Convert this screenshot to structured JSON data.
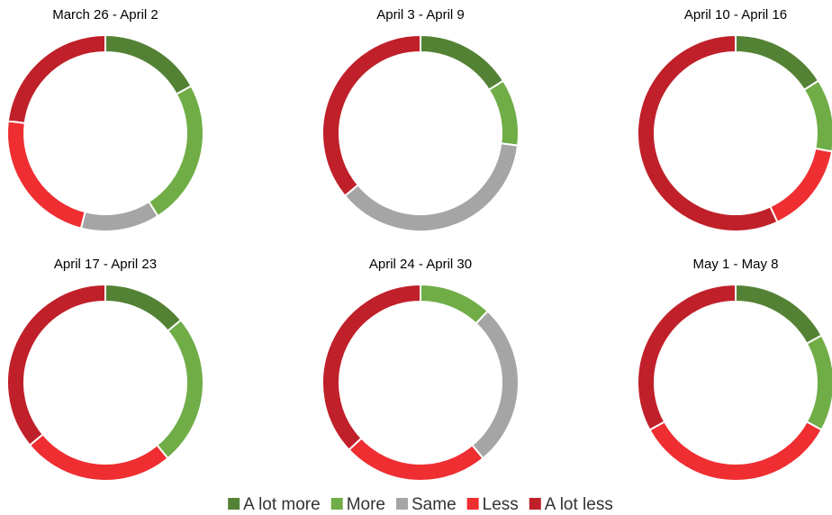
{
  "chart_data": [
    {
      "type": "donut",
      "title": "March 26 - April 2",
      "categories": [
        "A lot more",
        "More",
        "Same",
        "Less",
        "A lot less"
      ],
      "values": [
        17,
        24,
        13,
        23,
        23
      ],
      "colors": [
        "#548235",
        "#70ad47",
        "#a5a5a5",
        "#ee2e31",
        "#c0202a"
      ]
    },
    {
      "type": "donut",
      "title": "April 3 - April 9",
      "categories": [
        "A lot more",
        "More",
        "Same",
        "Less",
        "A lot less"
      ],
      "values": [
        16,
        11,
        37,
        0,
        36
      ],
      "colors": [
        "#548235",
        "#70ad47",
        "#a5a5a5",
        "#ee2e31",
        "#c0202a"
      ]
    },
    {
      "type": "donut",
      "title": "April 10 - April 16",
      "categories": [
        "A lot more",
        "More",
        "Same",
        "Less",
        "A lot less"
      ],
      "values": [
        16,
        12,
        0,
        15,
        57
      ],
      "colors": [
        "#548235",
        "#70ad47",
        "#a5a5a5",
        "#ee2e31",
        "#c0202a"
      ]
    },
    {
      "type": "donut",
      "title": "April 17 - April 23",
      "categories": [
        "A lot more",
        "More",
        "Same",
        "Less",
        "A lot less"
      ],
      "values": [
        14,
        25,
        0,
        25,
        36
      ],
      "colors": [
        "#548235",
        "#70ad47",
        "#a5a5a5",
        "#ee2e31",
        "#c0202a"
      ]
    },
    {
      "type": "donut",
      "title": "April 24 - April 30",
      "categories": [
        "A lot more",
        "More",
        "Same",
        "Less",
        "A lot less"
      ],
      "values": [
        0,
        12,
        27,
        24,
        37
      ],
      "colors": [
        "#548235",
        "#70ad47",
        "#a5a5a5",
        "#ee2e31",
        "#c0202a"
      ]
    },
    {
      "type": "donut",
      "title": "May 1 - May 8",
      "categories": [
        "A lot more",
        "More",
        "Same",
        "Less",
        "A lot less"
      ],
      "values": [
        17,
        16,
        0,
        34,
        33
      ],
      "colors": [
        "#548235",
        "#70ad47",
        "#a5a5a5",
        "#ee2e31",
        "#c0202a"
      ]
    }
  ]
}
